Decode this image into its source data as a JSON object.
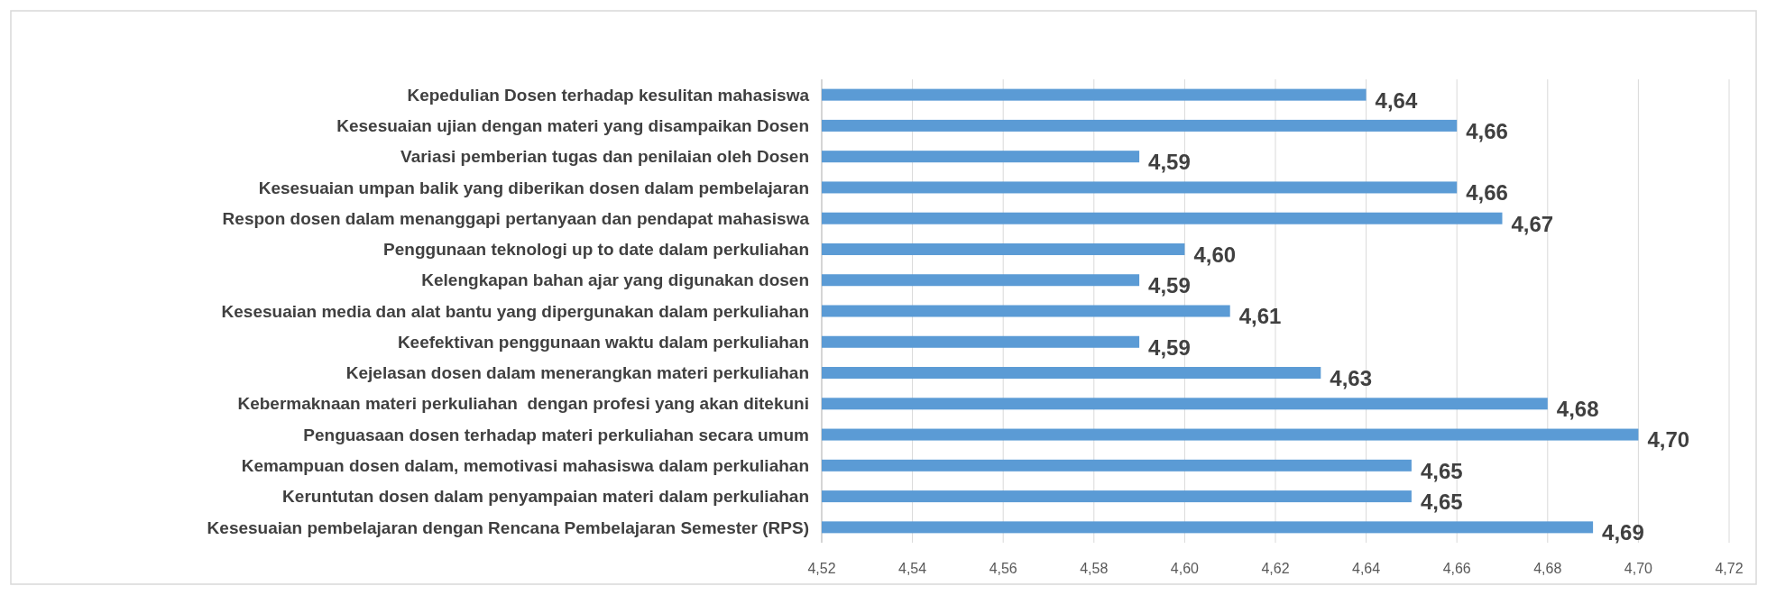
{
  "chart_data": {
    "type": "bar",
    "orientation": "horizontal",
    "categories": [
      "Kepedulian Dosen terhadap kesulitan mahasiswa",
      "Kesesuaian ujian dengan materi yang disampaikan Dosen",
      "Variasi pemberian tugas dan penilaian oleh Dosen",
      "Kesesuaian umpan balik yang diberikan dosen dalam pembelajaran",
      "Respon dosen dalam menanggapi pertanyaan dan pendapat mahasiswa",
      "Penggunaan teknologi up to date dalam perkuliahan",
      "Kelengkapan bahan ajar yang digunakan dosen",
      "Kesesuaian media dan alat bantu yang dipergunakan dalam perkuliahan",
      "Keefektivan penggunaan waktu dalam perkuliahan",
      "Kejelasan dosen dalam menerangkan materi perkuliahan",
      "Kebermaknaan materi perkuliahan  dengan profesi yang akan ditekuni",
      "Penguasaan dosen terhadap materi perkuliahan secara umum",
      "Kemampuan dosen dalam, memotivasi mahasiswa dalam perkuliahan",
      "Keruntutan dosen dalam penyampaian materi dalam perkuliahan",
      "Kesesuaian pembelajaran dengan Rencana Pembelajaran Semester (RPS)"
    ],
    "values": [
      4.64,
      4.66,
      4.59,
      4.66,
      4.67,
      4.6,
      4.59,
      4.61,
      4.59,
      4.63,
      4.68,
      4.7,
      4.65,
      4.65,
      4.69
    ],
    "value_labels": [
      "4,64",
      "4,66",
      "4,59",
      "4,66",
      "4,67",
      "4,60",
      "4,59",
      "4,61",
      "4,59",
      "4,63",
      "4,68",
      "4,70",
      "4,65",
      "4,65",
      "4,69"
    ],
    "color": "#5b9bd5",
    "xlim": [
      4.52,
      4.72
    ],
    "xticks": [
      {
        "value": 4.52,
        "label": "4,52"
      },
      {
        "value": 4.54,
        "label": "4,54"
      },
      {
        "value": 4.56,
        "label": "4,56"
      },
      {
        "value": 4.58,
        "label": "4,58"
      },
      {
        "value": 4.6,
        "label": "4,60"
      },
      {
        "value": 4.62,
        "label": "4,62"
      },
      {
        "value": 4.64,
        "label": "4,64"
      },
      {
        "value": 4.66,
        "label": "4,66"
      },
      {
        "value": 4.68,
        "label": "4,68"
      },
      {
        "value": 4.7,
        "label": "4,70"
      },
      {
        "value": 4.72,
        "label": "4,72"
      }
    ],
    "grid": "x"
  }
}
